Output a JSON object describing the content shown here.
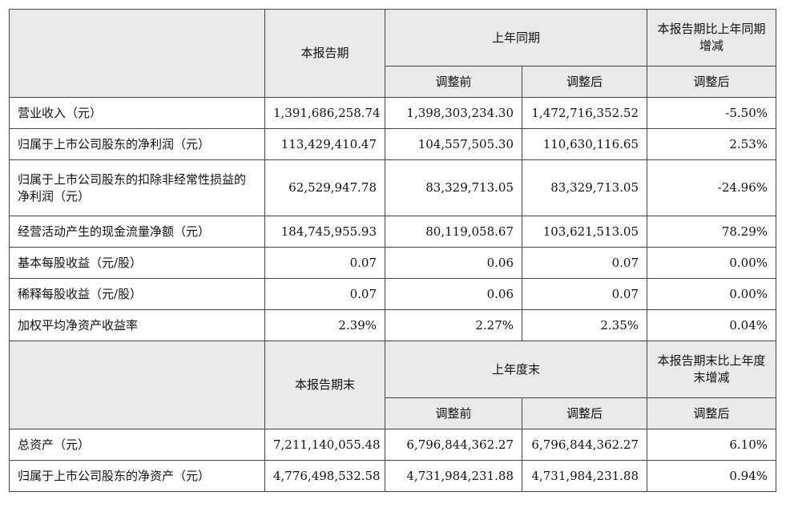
{
  "header1": {
    "current_period": "本报告期",
    "prior_year_same_period": "上年同期",
    "yoy_change": "本报告期比上年同期增减",
    "before_adjustment": "调整前",
    "after_adjustment": "调整后",
    "after_adjustment_change": "调整后"
  },
  "rows1": [
    {
      "label": "营业收入（元）",
      "current": "1,391,686,258.74",
      "before": "1,398,303,234.30",
      "after": "1,472,716,352.52",
      "change": "-5.50%"
    },
    {
      "label": "归属于上市公司股东的净利润（元）",
      "current": "113,429,410.47",
      "before": "104,557,505.30",
      "after": "110,630,116.65",
      "change": "2.53%"
    },
    {
      "label": "归属于上市公司股东的扣除非经常性损益的净利润（元）",
      "current": "62,529,947.78",
      "before": "83,329,713.05",
      "after": "83,329,713.05",
      "change": "-24.96%"
    },
    {
      "label": "经营活动产生的现金流量净额（元）",
      "current": "184,745,955.93",
      "before": "80,119,058.67",
      "after": "103,621,513.05",
      "change": "78.29%"
    },
    {
      "label": "基本每股收益（元/股）",
      "current": "0.07",
      "before": "0.06",
      "after": "0.07",
      "change": "0.00%"
    },
    {
      "label": "稀释每股收益（元/股）",
      "current": "0.07",
      "before": "0.06",
      "after": "0.07",
      "change": "0.00%"
    },
    {
      "label": "加权平均净资产收益率",
      "current": "2.39%",
      "before": "2.27%",
      "after": "2.35%",
      "change": "0.04%"
    }
  ],
  "header2": {
    "current_period_end": "本报告期末",
    "prior_year_end": "上年度末",
    "change_vs_prior_year_end": "本报告期末比上年度末增减",
    "before_adjustment": "调整前",
    "after_adjustment": "调整后",
    "after_adjustment_change": "调整后"
  },
  "rows2": [
    {
      "label": "总资产（元）",
      "current": "7,211,140,055.48",
      "before": "6,796,844,362.27",
      "after": "6,796,844,362.27",
      "change": "6.10%"
    },
    {
      "label": "归属于上市公司股东的净资产（元）",
      "current": "4,776,498,532.58",
      "before": "4,731,984,231.88",
      "after": "4,731,984,231.88",
      "change": "0.94%"
    }
  ]
}
